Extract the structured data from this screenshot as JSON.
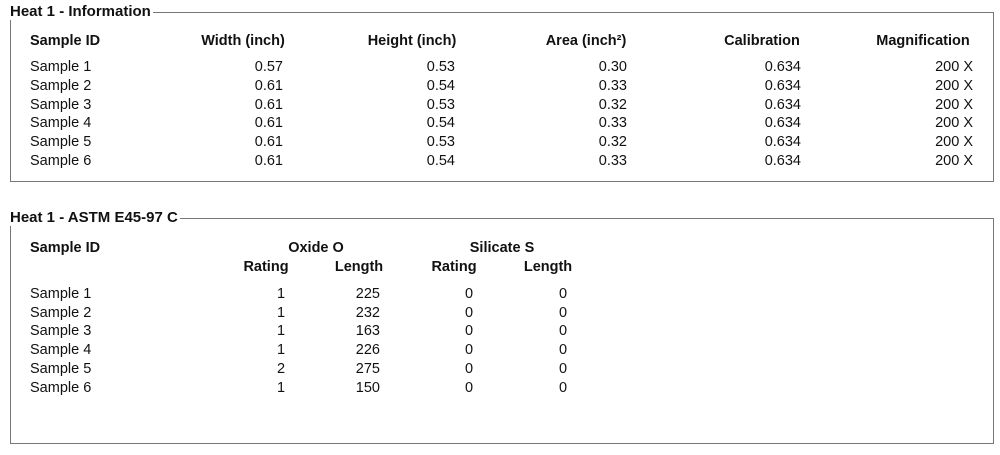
{
  "sections": [
    {
      "title": "Heat 1 - Information",
      "table": {
        "header": [
          "Sample ID",
          "Width (inch)",
          "Height (inch)",
          "Area (inch²)",
          "Calibration",
          "Magnification"
        ],
        "rows": [
          [
            "Sample 1",
            "0.57",
            "0.53",
            "0.30",
            "0.634",
            "200 X"
          ],
          [
            "Sample 2",
            "0.61",
            "0.54",
            "0.33",
            "0.634",
            "200 X"
          ],
          [
            "Sample 3",
            "0.61",
            "0.53",
            "0.32",
            "0.634",
            "200 X"
          ],
          [
            "Sample 4",
            "0.61",
            "0.54",
            "0.33",
            "0.634",
            "200 X"
          ],
          [
            "Sample 5",
            "0.61",
            "0.53",
            "0.32",
            "0.634",
            "200 X"
          ],
          [
            "Sample 6",
            "0.61",
            "0.54",
            "0.33",
            "0.634",
            "200 X"
          ]
        ]
      }
    },
    {
      "title": "Heat 1 - ASTM E45-97 C",
      "table": {
        "header": [
          "Sample ID"
        ],
        "groups": [
          "Oxide O",
          "Silicate S"
        ],
        "subheader": [
          "Rating",
          "Length",
          "Rating",
          "Length"
        ],
        "rows": [
          [
            "Sample 1",
            "1",
            "225",
            "0",
            "0"
          ],
          [
            "Sample 2",
            "1",
            "232",
            "0",
            "0"
          ],
          [
            "Sample 3",
            "1",
            "163",
            "0",
            "0"
          ],
          [
            "Sample 4",
            "1",
            "226",
            "0",
            "0"
          ],
          [
            "Sample 5",
            "2",
            "275",
            "0",
            "0"
          ],
          [
            "Sample 6",
            "1",
            "150",
            "0",
            "0"
          ]
        ]
      }
    }
  ]
}
